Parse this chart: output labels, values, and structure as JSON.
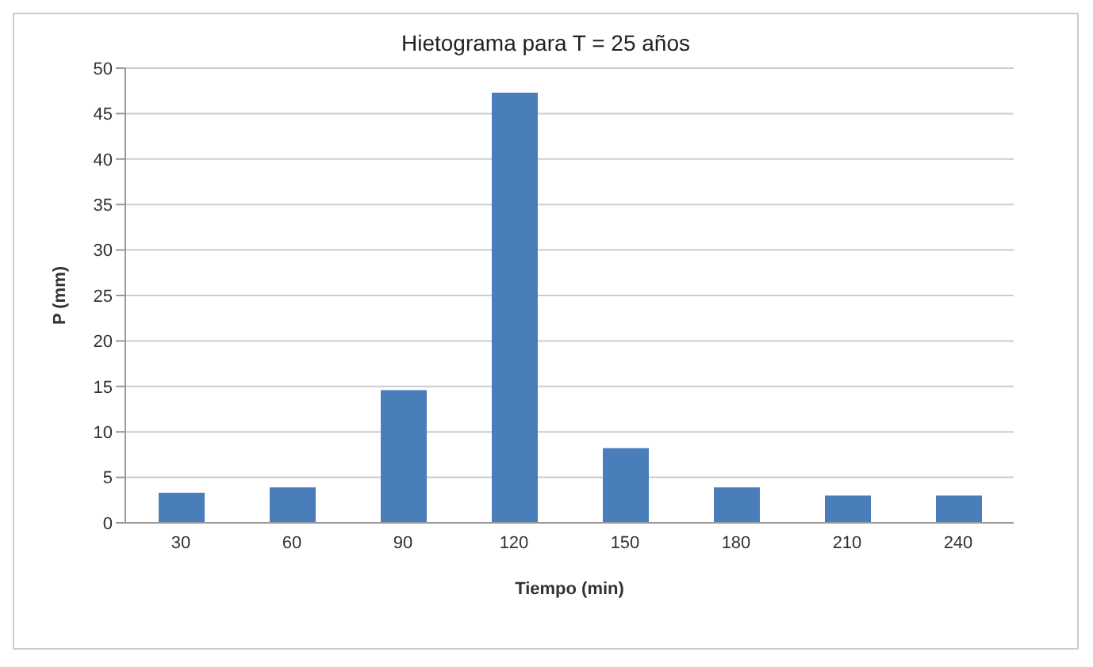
{
  "chart_data": {
    "type": "bar",
    "title": "Hietograma para T = 25 años",
    "xlabel": "Tiempo  (min)",
    "ylabel": "P (mm)",
    "categories": [
      "30",
      "60",
      "90",
      "120",
      "150",
      "180",
      "210",
      "240"
    ],
    "values": [
      3.3,
      3.9,
      14.6,
      47.3,
      8.2,
      3.9,
      3.0,
      3.0
    ],
    "color": "#4a7ebb",
    "ylim": [
      0,
      50
    ],
    "yticks": [
      0,
      5,
      10,
      15,
      20,
      25,
      30,
      35,
      40,
      45,
      50
    ],
    "grid": "y"
  }
}
